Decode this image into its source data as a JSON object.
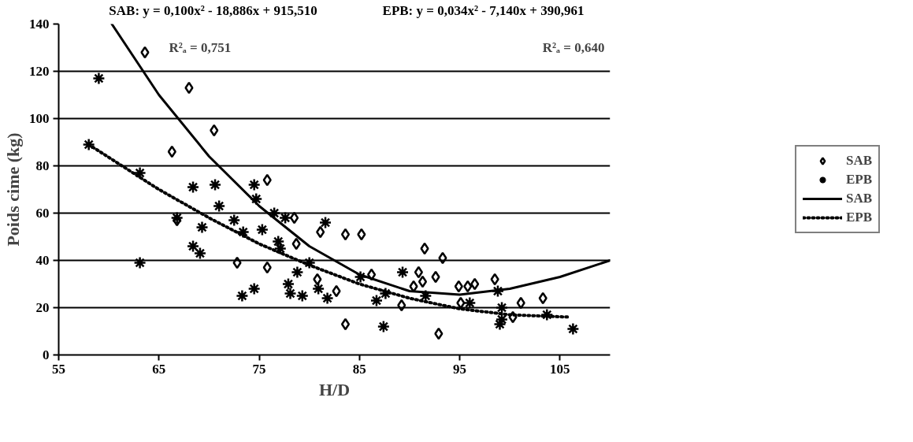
{
  "chart_data": {
    "type": "scatter",
    "xlabel": "H/D",
    "ylabel": "Poids cime (kg)",
    "annotations": [
      "SAB: y = 0,100x² - 18,886x + 915,510",
      "EPB: y = 0,034x² - 7,140x + 390,961",
      "R²ₐ = 0,751",
      "R²ₐ = 0,640"
    ],
    "xlim": [
      55,
      110
    ],
    "xticks": [
      55,
      65,
      75,
      85,
      95,
      105
    ],
    "ylim": [
      0,
      140
    ],
    "yticks": [
      0,
      20,
      40,
      60,
      80,
      100,
      120,
      140
    ],
    "grid": "y",
    "legend": "right",
    "series": [
      {
        "name": "SAB",
        "type": "scatter",
        "marker": "diamond",
        "color": "#000000",
        "x": [
          63.6,
          68.0,
          70.5,
          66.3,
          66.8,
          72.8,
          75.8,
          78.5,
          81.1,
          83.6,
          85.2,
          91.5,
          78.7,
          75.8,
          80.8,
          82.7,
          83.6,
          86.2,
          90.9,
          91.3,
          90.4,
          89.2,
          93.3,
          92.6,
          94.9,
          95.8,
          96.5,
          98.5,
          95.1,
          101.1,
          103.3,
          92.9,
          100.3
        ],
        "values": [
          128,
          113,
          95,
          86,
          57,
          39,
          74,
          58,
          52,
          51,
          51,
          45,
          47,
          37,
          32,
          27,
          13,
          34,
          35,
          31,
          29,
          21,
          41,
          33,
          29,
          29,
          30,
          32,
          22,
          22,
          24,
          9,
          16
        ]
      },
      {
        "name": "EPB",
        "type": "scatter",
        "marker": "cross",
        "color": "#000000",
        "x": [
          59.0,
          58.0,
          63.1,
          68.4,
          70.6,
          71.0,
          66.8,
          69.3,
          68.4,
          69.1,
          63.1,
          73.3,
          72.5,
          74.5,
          74.7,
          76.5,
          77.6,
          81.6,
          75.3,
          73.4,
          76.9,
          77.1,
          80.0,
          78.8,
          80.9,
          77.9,
          78.1,
          79.3,
          81.8,
          74.5,
          87.4,
          85.1,
          89.3,
          87.6,
          86.7,
          91.6,
          96.0,
          99.2,
          99.2,
          99.0,
          103.7,
          106.3,
          98.8
        ],
        "values": [
          117,
          89,
          77,
          71,
          72,
          63,
          58,
          54,
          46,
          43,
          39,
          25,
          57,
          72,
          66,
          60,
          58,
          56,
          53,
          52,
          48,
          45,
          39,
          35,
          28,
          30,
          26,
          25,
          24,
          28,
          12,
          33,
          35,
          26,
          23,
          25,
          22,
          20,
          15,
          13,
          17,
          11,
          27
        ]
      },
      {
        "name": "SAB",
        "type": "line",
        "line_style": "solid",
        "color": "#000000",
        "x": [
          60.3,
          65,
          70,
          75,
          80,
          85,
          90,
          95,
          100,
          105,
          110
        ],
        "values": [
          140,
          110,
          84,
          63,
          46,
          34,
          27,
          25.5,
          28,
          33,
          40
        ]
      },
      {
        "name": "EPB",
        "type": "line",
        "line_style": "dotted",
        "color": "#000000",
        "x": [
          58,
          65,
          70,
          75,
          80,
          85,
          90,
          95,
          100,
          106
        ],
        "values": [
          89,
          70,
          58,
          47,
          38,
          30,
          24,
          19.5,
          17,
          16
        ]
      }
    ]
  }
}
